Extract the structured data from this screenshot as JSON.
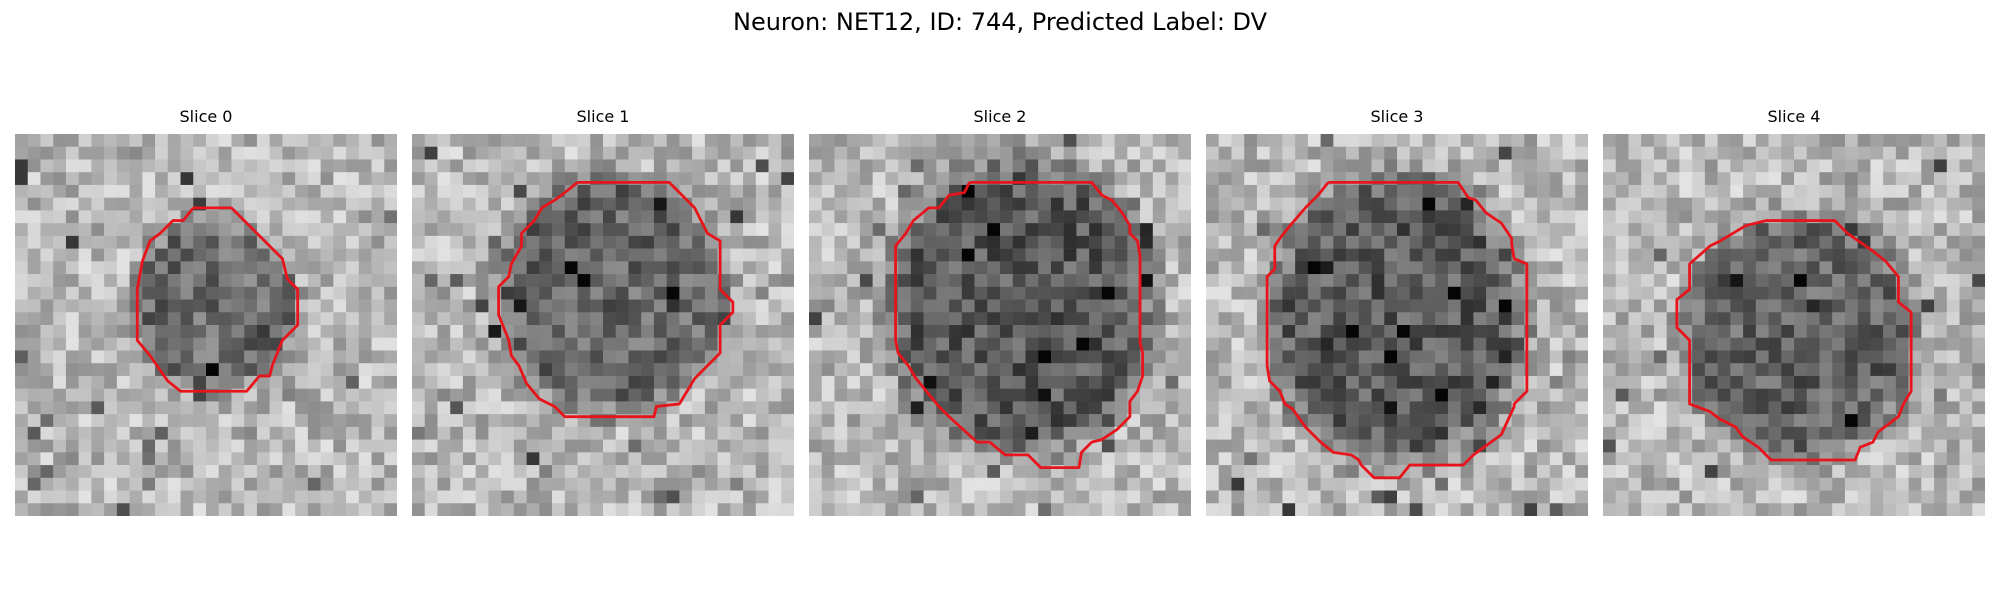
{
  "figure": {
    "title": "Neuron: NET12, ID: 744, Predicted Label: DV"
  },
  "panels": [
    {
      "title": "Slice 0",
      "image": "grayscale-microscopy-slice-with-contour",
      "contour_color": "#e8141c"
    },
    {
      "title": "Slice 1",
      "image": "grayscale-microscopy-slice-with-contour",
      "contour_color": "#e8141c"
    },
    {
      "title": "Slice 2",
      "image": "grayscale-microscopy-slice-with-contour",
      "contour_color": "#e8141c"
    },
    {
      "title": "Slice 3",
      "image": "grayscale-microscopy-slice-with-contour",
      "contour_color": "#e8141c"
    },
    {
      "title": "Slice 4",
      "image": "grayscale-microscopy-slice-with-contour",
      "contour_color": "#e8141c"
    }
  ]
}
